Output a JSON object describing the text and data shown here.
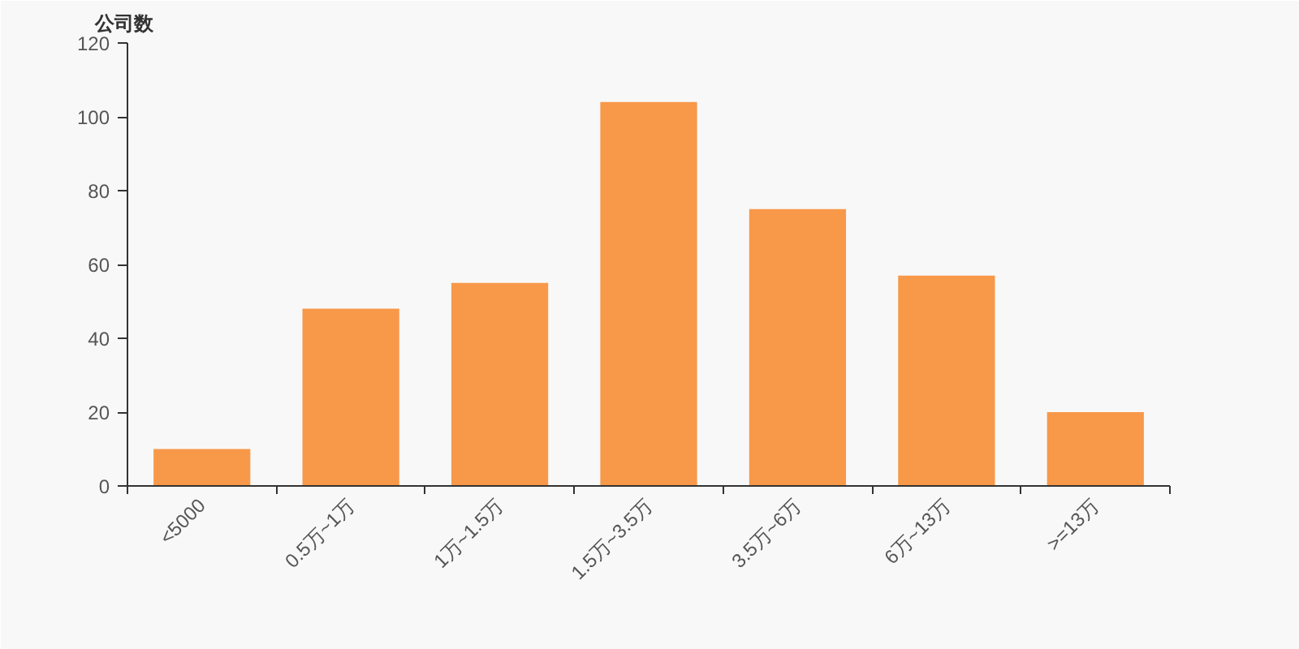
{
  "chart_data": {
    "type": "bar",
    "ylabel": "公司数",
    "categories": [
      "<5000",
      "0.5万~1万",
      "1万~1.5万",
      "1.5万~3.5万",
      "3.5万~6万",
      "6万~13万",
      ">=13万"
    ],
    "values": [
      10,
      48,
      55,
      104,
      75,
      57,
      20
    ],
    "color": "#f89849",
    "ylim": [
      0,
      120
    ],
    "yticks": [
      0,
      20,
      40,
      60,
      80,
      100,
      120
    ],
    "grid": false
  }
}
